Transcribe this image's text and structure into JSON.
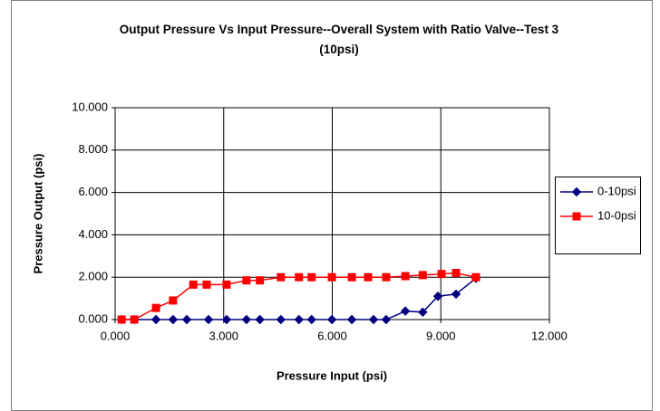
{
  "chart_data": {
    "type": "line",
    "title": "Output Pressure Vs Input Pressure--Overall System with Ratio Valve--Test 3 (10psi)",
    "x_label": "Pressure Input (psi)",
    "y_label": "Pressure Output (psi)",
    "xlim": [
      0,
      12
    ],
    "ylim": [
      0,
      10
    ],
    "xticks": [
      {
        "value": 0,
        "label": "0.000"
      },
      {
        "value": 3,
        "label": "3.000"
      },
      {
        "value": 6,
        "label": "6.000"
      },
      {
        "value": 9,
        "label": "9.000"
      },
      {
        "value": 12,
        "label": "12.000"
      }
    ],
    "yticks": [
      {
        "value": 0,
        "label": "0.000"
      },
      {
        "value": 2,
        "label": "2.000"
      },
      {
        "value": 4,
        "label": "4.000"
      },
      {
        "value": 6,
        "label": "6.000"
      },
      {
        "value": 8,
        "label": "8.000"
      },
      {
        "value": 10,
        "label": "10.000"
      }
    ],
    "grid": true,
    "legend": "right",
    "series": [
      {
        "name": "0-10psi",
        "color": "#000080",
        "marker": "diamond",
        "x": [
          0.18,
          0.53,
          1.13,
          1.6,
          1.98,
          2.58,
          3.08,
          3.63,
          4.0,
          4.58,
          5.08,
          5.43,
          5.99,
          6.54,
          7.14,
          7.49,
          8.02,
          8.5,
          8.92,
          9.42,
          9.97
        ],
        "values": [
          0,
          0,
          0,
          0,
          0,
          0,
          0,
          0,
          0,
          0,
          0,
          0,
          0,
          0,
          0,
          0,
          0.4,
          0.35,
          1.1,
          1.2,
          1.95
        ]
      },
      {
        "name": "10-0psi",
        "color": "#ff0000",
        "marker": "square",
        "x": [
          0.18,
          0.53,
          1.13,
          1.6,
          2.16,
          2.53,
          3.08,
          3.63,
          4.0,
          4.58,
          5.08,
          5.43,
          5.99,
          6.54,
          6.99,
          7.49,
          8.02,
          8.5,
          9.02,
          9.42,
          9.97
        ],
        "values": [
          0,
          0,
          0.55,
          0.9,
          1.65,
          1.65,
          1.65,
          1.85,
          1.85,
          2.0,
          2.0,
          2.0,
          2.0,
          2.0,
          2.0,
          2.0,
          2.05,
          2.1,
          2.15,
          2.2,
          2.0
        ]
      }
    ]
  }
}
